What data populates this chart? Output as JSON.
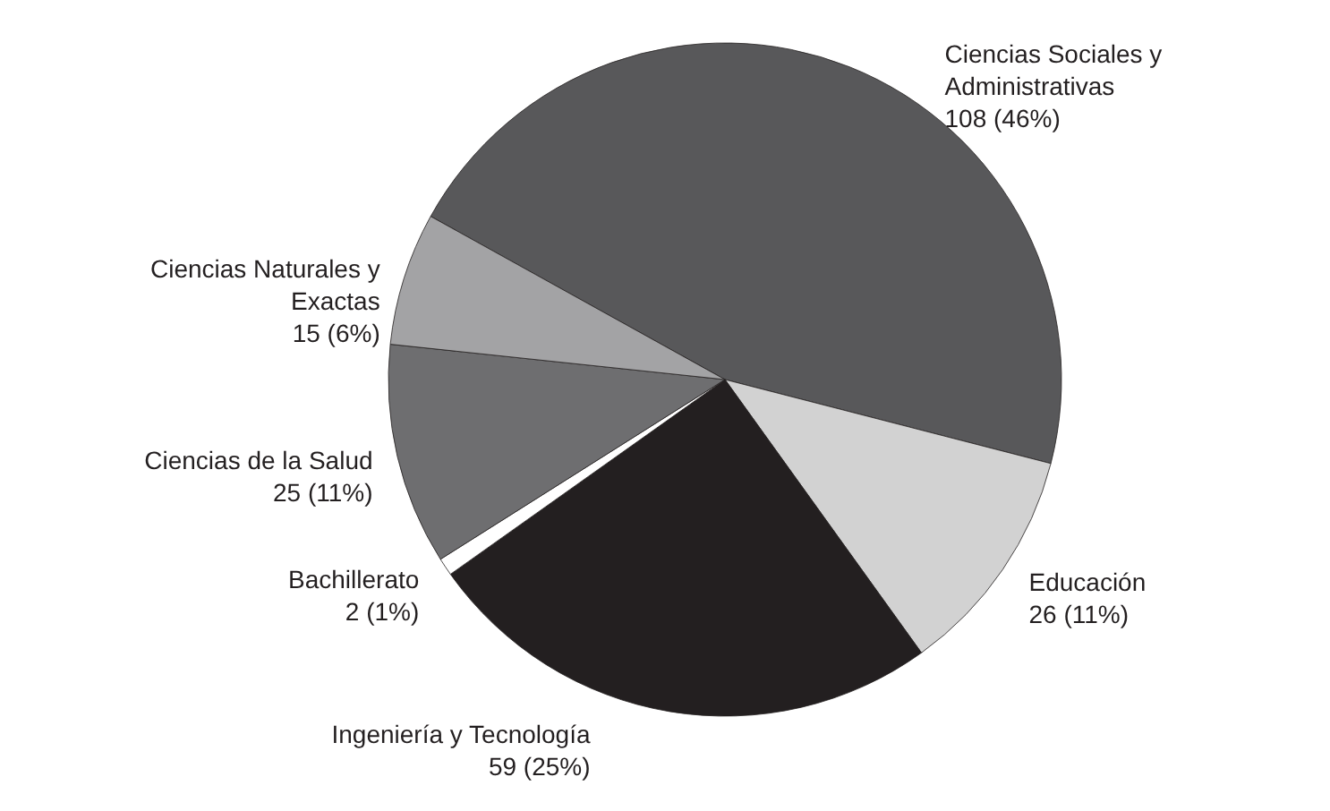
{
  "chart_data": {
    "type": "pie",
    "categories": [
      "Ciencias Sociales y Administrativas",
      "Educación",
      "Ingeniería y Tecnología",
      "Bachillerato",
      "Ciencias de la Salud",
      "Ciencias Naturales y Exactas"
    ],
    "values": [
      108,
      26,
      59,
      2,
      25,
      15
    ],
    "value_labels": [
      "108 (46%)",
      "26 (11%)",
      "59 (25%)",
      "2 (1%)",
      "25 (11%)",
      "15 (6%)"
    ],
    "colors": [
      "#58585a",
      "#d2d2d2",
      "#231f20",
      "#ffffff",
      "#6e6e70",
      "#a3a3a5"
    ]
  }
}
